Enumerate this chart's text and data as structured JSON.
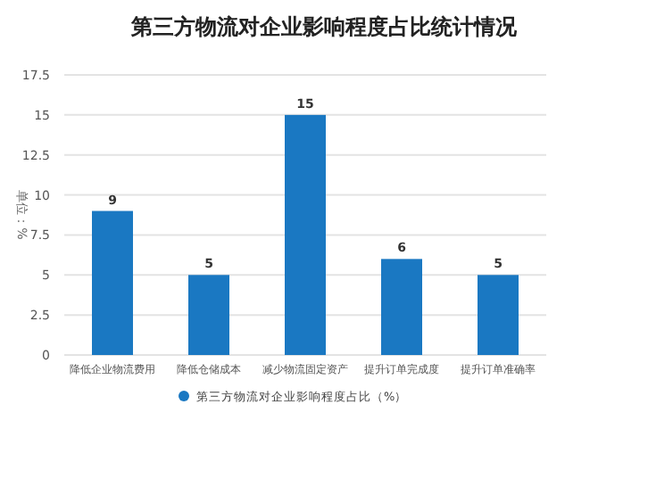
{
  "chart_data": {
    "type": "bar",
    "title": "第三方物流对企业影响程度占比统计情况",
    "ylabel": "单位：%",
    "categories": [
      "降低企业物流费用",
      "降低仓储成本",
      "减少物流固定资产",
      "提升订单完成度",
      "提升订单准确率"
    ],
    "series": [
      {
        "name": "第三方物流对企业影响程度占比（%）",
        "color": "#1a78c2",
        "values": [
          9,
          5,
          15,
          6,
          5
        ]
      }
    ],
    "ylim": [
      0,
      17.5
    ],
    "yticks": [
      0,
      2.5,
      5,
      7.5,
      10,
      12.5,
      15,
      17.5
    ],
    "grid": "y",
    "legend": "bottom",
    "data_labels": true
  }
}
